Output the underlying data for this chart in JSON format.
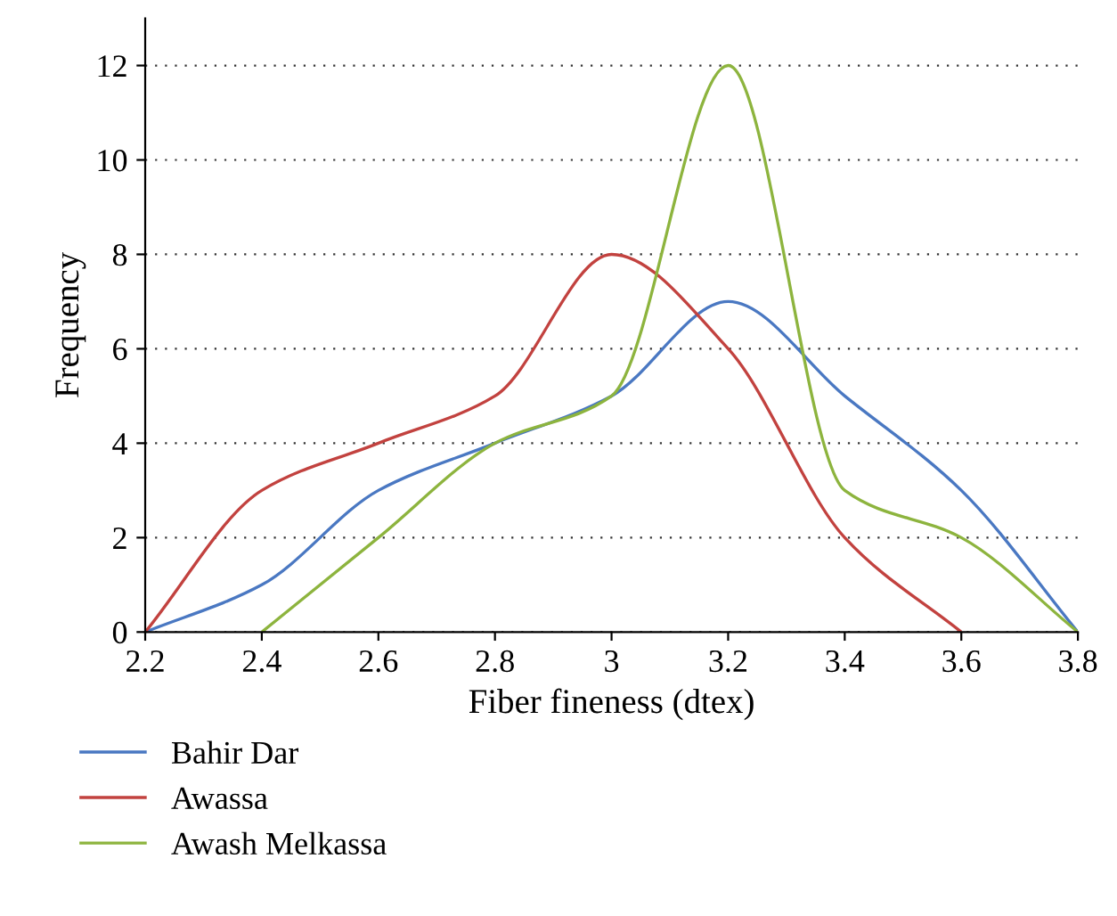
{
  "chart_data": {
    "type": "line",
    "xlabel": "Fiber fineness (dtex)",
    "ylabel": "Frequency",
    "xlim": [
      2.2,
      3.8
    ],
    "xticks": [
      2.2,
      2.4,
      2.6,
      2.8,
      3,
      3.2,
      3.4,
      3.6,
      3.8
    ],
    "ylim": [
      0,
      13
    ],
    "yticks": [
      0,
      2,
      4,
      6,
      8,
      10,
      12
    ],
    "grid": "y",
    "legend": "bottom",
    "line_style": "solid",
    "marker": "none",
    "series": [
      {
        "name": "Bahir Dar",
        "color": "#4a78c2",
        "x": [
          2.2,
          2.4,
          2.6,
          2.8,
          3.0,
          3.2,
          3.4,
          3.6,
          3.8
        ],
        "values": [
          0,
          1,
          3,
          4,
          5,
          7,
          5,
          3,
          0
        ]
      },
      {
        "name": "Awassa",
        "color": "#c2423f",
        "x": [
          2.2,
          2.4,
          2.6,
          2.8,
          3.0,
          3.2,
          3.4,
          3.6
        ],
        "values": [
          0,
          3,
          4,
          5,
          8,
          6,
          2,
          0
        ]
      },
      {
        "name": "Awash Melkassa",
        "color": "#8db43e",
        "x": [
          2.4,
          2.6,
          2.8,
          3.0,
          3.2,
          3.4,
          3.6,
          3.8
        ],
        "values": [
          0,
          2,
          4,
          5,
          12,
          3,
          2,
          0
        ]
      }
    ]
  }
}
